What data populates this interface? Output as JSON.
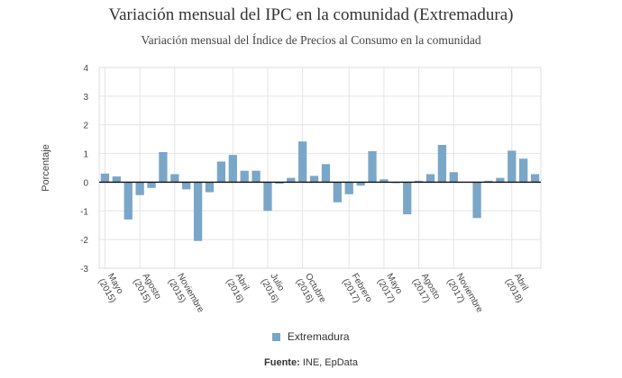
{
  "chart_data": {
    "type": "bar",
    "title": "Variación mensual del IPC en la comunidad (Extremadura)",
    "subtitle": "Variación mensual del Índice de Precios al Consumo en la comunidad",
    "ylabel": "Porcentaje",
    "ylim": [
      -3,
      4
    ],
    "yticks": [
      4,
      3,
      2,
      1,
      0,
      -1,
      -2,
      -3
    ],
    "grid": true,
    "legend_position": "bottom",
    "series": [
      {
        "name": "Extremadura",
        "color": "#7aa6c8",
        "values": [
          0.3,
          0.2,
          -1.3,
          -0.45,
          -0.2,
          1.05,
          0.28,
          -0.25,
          -2.05,
          -0.35,
          0.72,
          0.95,
          0.4,
          0.4,
          -1.0,
          -0.05,
          0.15,
          1.42,
          0.22,
          0.63,
          -0.7,
          -0.42,
          -0.12,
          1.08,
          0.1,
          -0.02,
          -1.12,
          0.05,
          0.28,
          1.3,
          0.35,
          0.0,
          -1.25,
          0.05,
          0.15,
          1.1,
          0.82,
          0.28
        ]
      }
    ],
    "x_tick_labels": [
      {
        "index": 0,
        "lines": [
          "Mayo",
          "(2015)"
        ]
      },
      {
        "index": 3,
        "lines": [
          "Agosto",
          "(2015)"
        ]
      },
      {
        "index": 6,
        "lines": [
          "Noviembre",
          "(2015)"
        ]
      },
      {
        "index": 11,
        "lines": [
          "Abril",
          "(2016)"
        ]
      },
      {
        "index": 14,
        "lines": [
          "Julio",
          "(2016)"
        ]
      },
      {
        "index": 17,
        "lines": [
          "Octubre",
          "(2016)"
        ]
      },
      {
        "index": 21,
        "lines": [
          "Febrero",
          "(2017)"
        ]
      },
      {
        "index": 24,
        "lines": [
          "Mayo",
          "(2017)"
        ]
      },
      {
        "index": 27,
        "lines": [
          "Agosto",
          "(2017)"
        ]
      },
      {
        "index": 30,
        "lines": [
          "Noviembre",
          "(2017)"
        ]
      },
      {
        "index": 35,
        "lines": [
          "Abril",
          "(2018)"
        ]
      }
    ]
  },
  "legend": {
    "label": "Extremadura",
    "color": "#7aa6c8"
  },
  "source": {
    "label": "Fuente:",
    "text": "INE, EpData"
  }
}
